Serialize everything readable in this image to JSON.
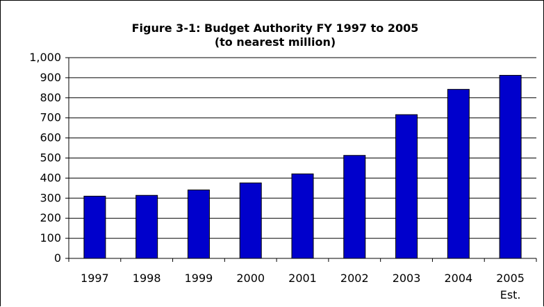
{
  "chart_data": {
    "type": "bar",
    "title": "Figure 3-1:  Budget Authority FY 1997 to 2005",
    "subtitle": "(to nearest million)",
    "categories": [
      "1997",
      "1998",
      "1999",
      "2000",
      "2001",
      "2002",
      "2003",
      "2004",
      "2005"
    ],
    "category_sublabels": [
      "",
      "",
      "",
      "",
      "",
      "",
      "",
      "",
      "Est."
    ],
    "values": [
      310,
      314,
      341,
      376,
      421,
      513,
      716,
      842,
      912
    ],
    "ylim": [
      0,
      1000
    ],
    "ytick_labels": [
      "0",
      "100",
      "200",
      "300",
      "400",
      "500",
      "600",
      "700",
      "800",
      "900",
      "1,000"
    ],
    "grid": true,
    "legend": "none",
    "colors": {
      "bar_fill": "#0000cc",
      "bar_stroke": "#000000",
      "gridline": "#000000"
    }
  }
}
